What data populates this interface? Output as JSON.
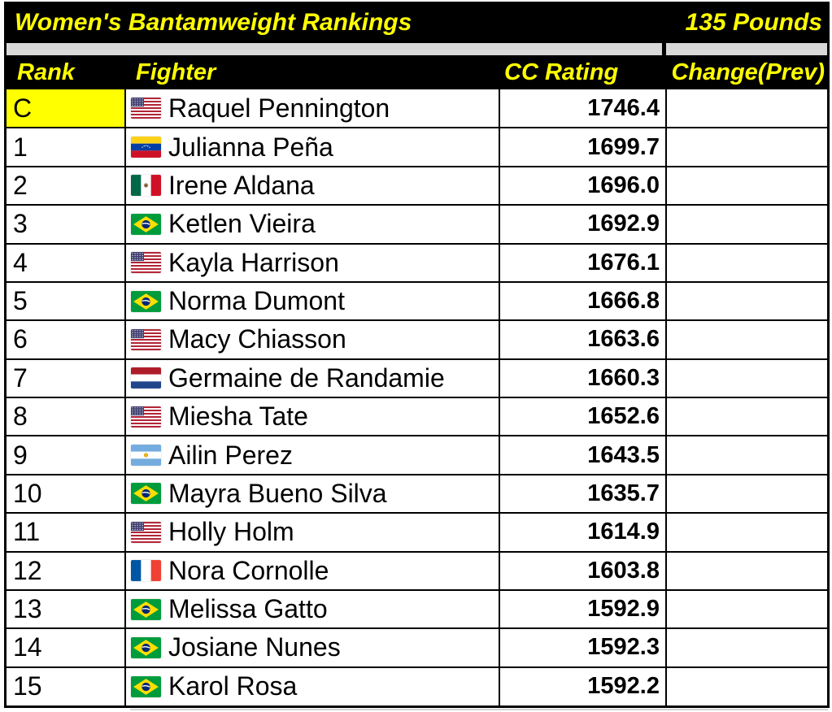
{
  "header": {
    "title": "Women's Bantamweight Rankings",
    "weight_class": "135 Pounds"
  },
  "columns": {
    "rank": "Rank",
    "fighter": "Fighter",
    "rating": "CC Rating",
    "change": "Change(Prev)"
  },
  "colors": {
    "band_background": "#000000",
    "band_text": "#FFFF00",
    "spacer_gray": "#D9D9D9",
    "champion_highlight": "#FFFF00",
    "grid_border": "#000000",
    "row_background": "#FFFFFF",
    "text": "#000000"
  },
  "table": {
    "rows": [
      {
        "rank": "C",
        "champion": true,
        "fighter": "Raquel Pennington",
        "country": "us",
        "flag_icon": "us-flag-icon",
        "rating": "1746.4",
        "change": ""
      },
      {
        "rank": "1",
        "champion": false,
        "fighter": "Julianna Peña",
        "country": "ve",
        "flag_icon": "ve-flag-icon",
        "rating": "1699.7",
        "change": ""
      },
      {
        "rank": "2",
        "champion": false,
        "fighter": "Irene Aldana",
        "country": "mx",
        "flag_icon": "mx-flag-icon",
        "rating": "1696.0",
        "change": ""
      },
      {
        "rank": "3",
        "champion": false,
        "fighter": "Ketlen Vieira",
        "country": "br",
        "flag_icon": "br-flag-icon",
        "rating": "1692.9",
        "change": ""
      },
      {
        "rank": "4",
        "champion": false,
        "fighter": "Kayla Harrison",
        "country": "us",
        "flag_icon": "us-flag-icon",
        "rating": "1676.1",
        "change": ""
      },
      {
        "rank": "5",
        "champion": false,
        "fighter": "Norma Dumont",
        "country": "br",
        "flag_icon": "br-flag-icon",
        "rating": "1666.8",
        "change": ""
      },
      {
        "rank": "6",
        "champion": false,
        "fighter": "Macy Chiasson",
        "country": "us",
        "flag_icon": "us-flag-icon",
        "rating": "1663.6",
        "change": ""
      },
      {
        "rank": "7",
        "champion": false,
        "fighter": "Germaine de Randamie",
        "country": "nl",
        "flag_icon": "nl-flag-icon",
        "rating": "1660.3",
        "change": ""
      },
      {
        "rank": "8",
        "champion": false,
        "fighter": "Miesha Tate",
        "country": "us",
        "flag_icon": "us-flag-icon",
        "rating": "1652.6",
        "change": ""
      },
      {
        "rank": "9",
        "champion": false,
        "fighter": "Ailin Perez",
        "country": "ar",
        "flag_icon": "ar-flag-icon",
        "rating": "1643.5",
        "change": ""
      },
      {
        "rank": "10",
        "champion": false,
        "fighter": "Mayra Bueno Silva",
        "country": "br",
        "flag_icon": "br-flag-icon",
        "rating": "1635.7",
        "change": ""
      },
      {
        "rank": "11",
        "champion": false,
        "fighter": "Holly Holm",
        "country": "us",
        "flag_icon": "us-flag-icon",
        "rating": "1614.9",
        "change": ""
      },
      {
        "rank": "12",
        "champion": false,
        "fighter": "Nora Cornolle",
        "country": "fr",
        "flag_icon": "fr-flag-icon",
        "rating": "1603.8",
        "change": ""
      },
      {
        "rank": "13",
        "champion": false,
        "fighter": "Melissa Gatto",
        "country": "br",
        "flag_icon": "br-flag-icon",
        "rating": "1592.9",
        "change": ""
      },
      {
        "rank": "14",
        "champion": false,
        "fighter": "Josiane Nunes",
        "country": "br",
        "flag_icon": "br-flag-icon",
        "rating": "1592.3",
        "change": ""
      },
      {
        "rank": "15",
        "champion": false,
        "fighter": "Karol Rosa",
        "country": "br",
        "flag_icon": "br-flag-icon",
        "rating": "1592.2",
        "change": ""
      }
    ]
  }
}
